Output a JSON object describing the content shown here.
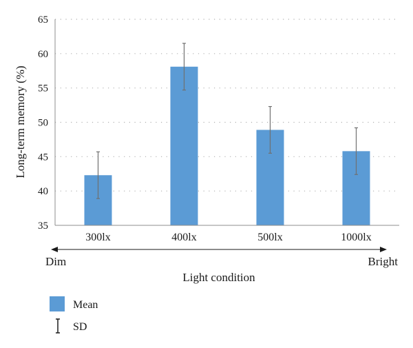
{
  "chart_data": {
    "type": "bar",
    "title": "",
    "xlabel": "Light condition",
    "ylabel": "Long-term memory (%)",
    "ylim": [
      35,
      65
    ],
    "yticks": [
      35,
      40,
      45,
      50,
      55,
      60,
      65
    ],
    "grid": true,
    "categories": [
      "300lx",
      "400lx",
      "500lx",
      "1000lx"
    ],
    "series": [
      {
        "name": "Mean",
        "values": [
          42.3,
          58.1,
          48.9,
          45.8
        ],
        "sd": [
          3.4,
          3.4,
          3.4,
          3.4
        ]
      }
    ],
    "error_bar_label": "SD",
    "axis_annotation": {
      "left": "Dim",
      "right": "Bright"
    },
    "legend_position": "bottom-left",
    "colors": {
      "bar": "#5b9bd5",
      "error": "#707070",
      "grid": "#b0b0b0",
      "axis": "#8c8c8c"
    }
  }
}
